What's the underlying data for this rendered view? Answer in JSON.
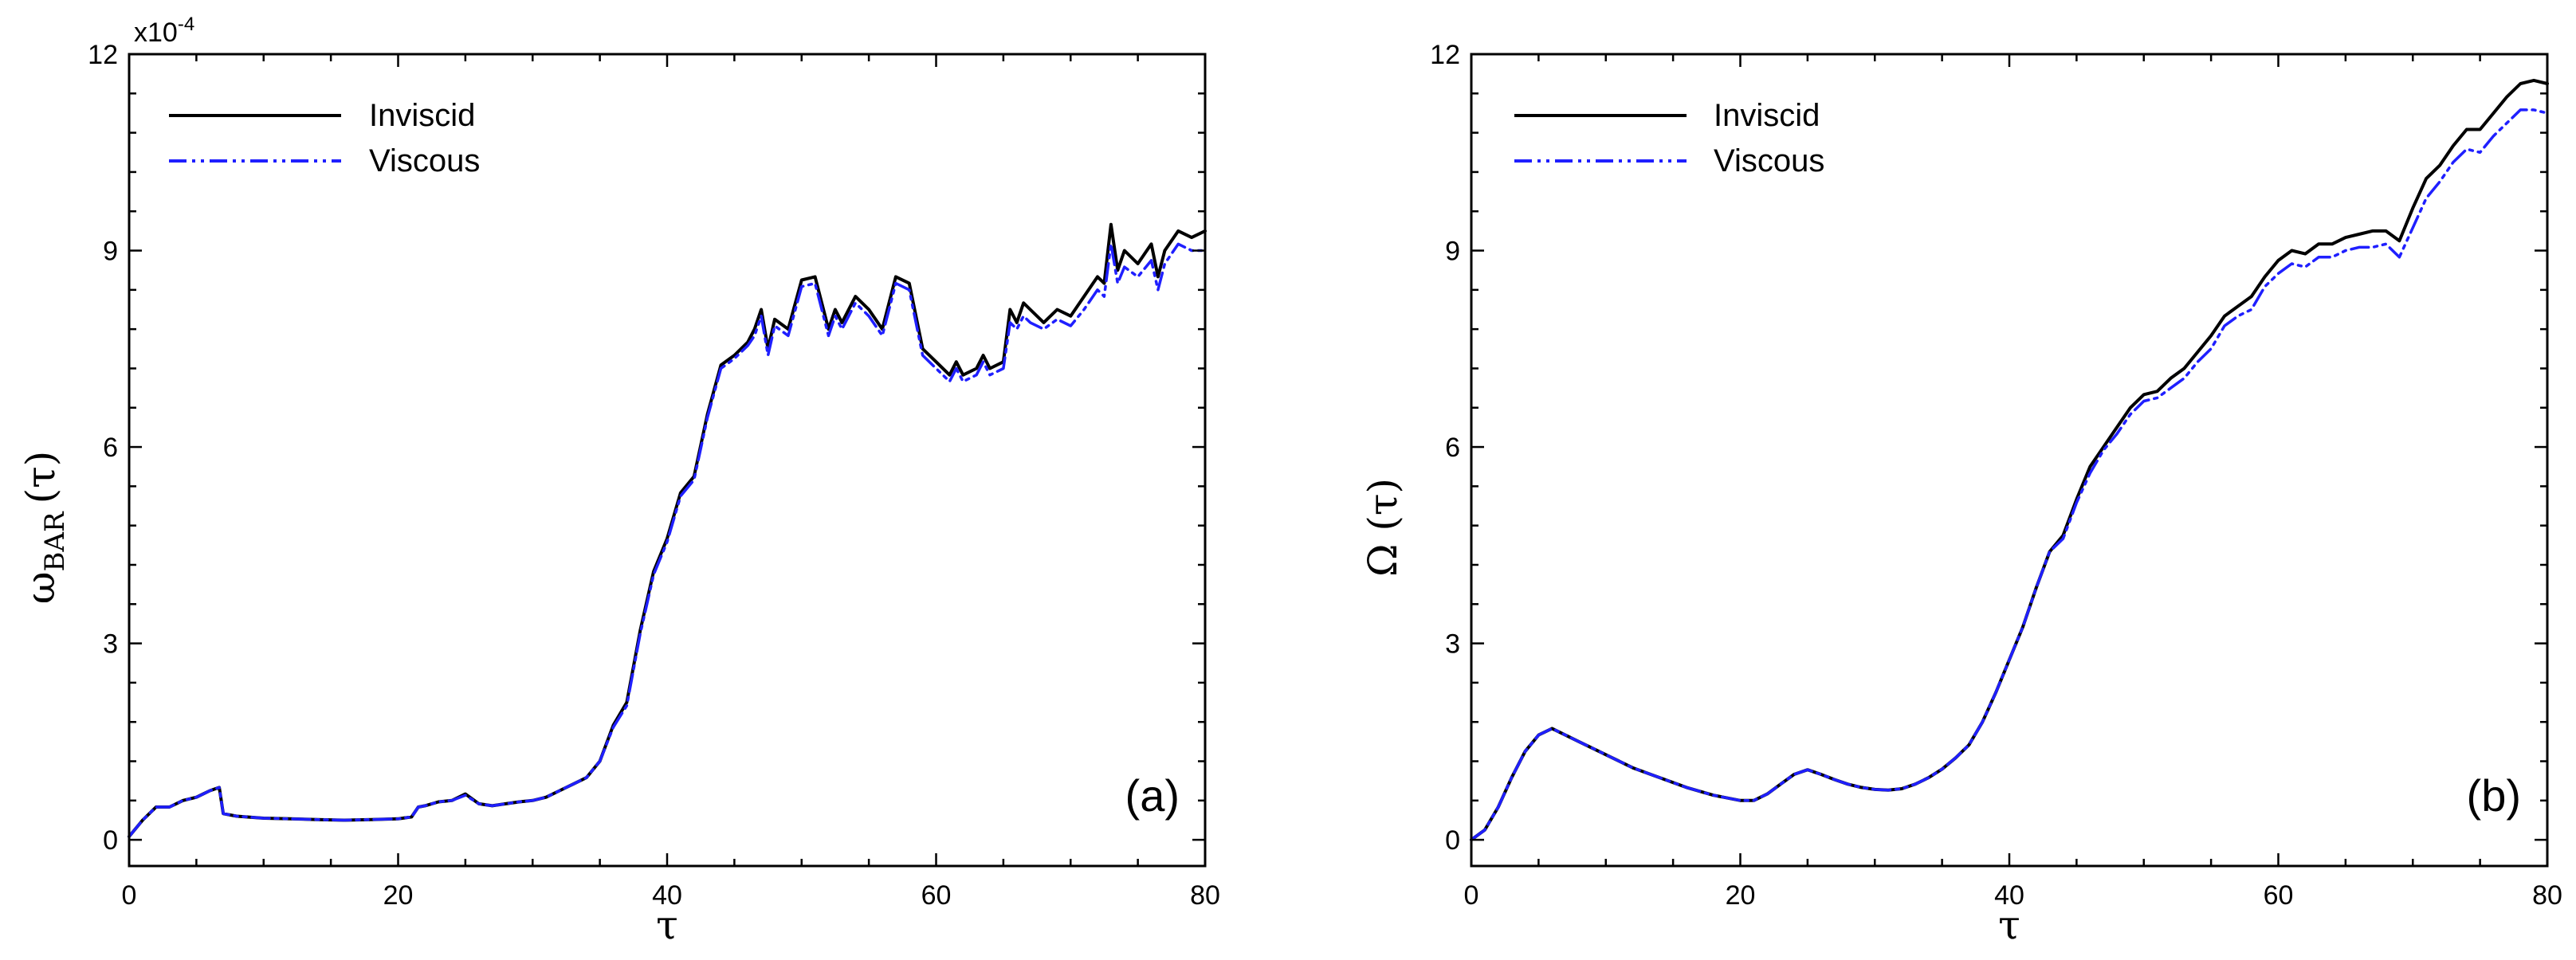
{
  "chart_data": [
    {
      "type": "line",
      "panel_label": "(a)",
      "xlabel": "τ",
      "ylabel_main": "ω",
      "ylabel_sub": "BAR",
      "ylabel_arg": "(τ)",
      "multiplier_base": "x10",
      "multiplier_exp": "-4",
      "xlim": [
        0,
        80
      ],
      "ylim": [
        -0.4,
        12
      ],
      "x_ticks": [
        0,
        20,
        40,
        60,
        80
      ],
      "y_ticks": [
        0,
        3,
        6,
        9,
        12
      ],
      "x_tick_labels": [
        "0",
        "20",
        "40",
        "60",
        "80"
      ],
      "y_tick_labels": [
        "0",
        "3",
        "6",
        "9",
        "12"
      ],
      "grid": false,
      "legend_position": "top-left",
      "series": [
        {
          "name": "Inviscid",
          "color": "#000000",
          "style": "solid",
          "x": [
            0,
            1,
            2,
            3,
            4,
            5,
            6,
            6.7,
            7,
            8,
            10,
            12,
            14,
            16,
            18,
            20,
            21,
            21.5,
            22,
            23,
            24,
            25,
            26,
            27,
            28,
            29,
            30,
            31,
            32,
            33,
            34,
            35,
            36,
            37,
            38,
            39,
            40,
            41,
            42,
            43,
            44,
            45,
            46,
            46.5,
            47,
            47.5,
            48,
            49,
            50,
            51,
            52,
            52.5,
            53,
            54,
            55,
            56,
            57,
            58,
            59,
            60,
            61,
            61.5,
            62,
            63,
            63.5,
            64,
            65,
            65.5,
            66,
            66.5,
            67,
            68,
            69,
            70,
            71,
            72,
            72.5,
            73,
            73.5,
            74,
            75,
            76,
            76.5,
            77,
            78,
            79,
            80
          ],
          "y": [
            0.05,
            0.3,
            0.5,
            0.5,
            0.6,
            0.65,
            0.75,
            0.8,
            0.4,
            0.36,
            0.33,
            0.32,
            0.31,
            0.3,
            0.31,
            0.32,
            0.35,
            0.5,
            0.52,
            0.58,
            0.6,
            0.7,
            0.55,
            0.52,
            0.55,
            0.58,
            0.6,
            0.65,
            0.75,
            0.85,
            0.95,
            1.2,
            1.75,
            2.1,
            3.2,
            4.1,
            4.6,
            5.3,
            5.55,
            6.5,
            7.25,
            7.4,
            7.6,
            7.8,
            8.1,
            7.5,
            7.95,
            7.8,
            8.55,
            8.6,
            7.8,
            8.1,
            7.9,
            8.3,
            8.1,
            7.8,
            8.6,
            8.5,
            7.5,
            7.3,
            7.1,
            7.3,
            7.1,
            7.2,
            7.4,
            7.2,
            7.3,
            8.1,
            7.9,
            8.2,
            8.1,
            7.9,
            8.1,
            8.0,
            8.3,
            8.6,
            8.5,
            9.4,
            8.7,
            9.0,
            8.8,
            9.1,
            8.6,
            9.0,
            9.3,
            9.2,
            9.3
          ]
        },
        {
          "name": "Viscous",
          "color": "#1f1fff",
          "style": "dashdot",
          "x": [
            0,
            1,
            2,
            3,
            4,
            5,
            6,
            6.7,
            7,
            8,
            10,
            12,
            14,
            16,
            18,
            20,
            21,
            21.5,
            22,
            23,
            24,
            25,
            26,
            27,
            28,
            29,
            30,
            31,
            32,
            33,
            34,
            35,
            36,
            37,
            38,
            39,
            40,
            41,
            42,
            43,
            44,
            45,
            46,
            46.5,
            47,
            47.5,
            48,
            49,
            50,
            51,
            52,
            52.5,
            53,
            54,
            55,
            56,
            57,
            58,
            59,
            60,
            61,
            61.5,
            62,
            63,
            63.5,
            64,
            65,
            65.5,
            66,
            66.5,
            67,
            68,
            69,
            70,
            71,
            72,
            72.5,
            73,
            73.5,
            74,
            75,
            76,
            76.5,
            77,
            78,
            79,
            80
          ],
          "y": [
            0.05,
            0.3,
            0.5,
            0.5,
            0.6,
            0.65,
            0.75,
            0.8,
            0.4,
            0.36,
            0.33,
            0.32,
            0.31,
            0.3,
            0.31,
            0.32,
            0.35,
            0.5,
            0.52,
            0.58,
            0.6,
            0.68,
            0.55,
            0.52,
            0.55,
            0.58,
            0.6,
            0.65,
            0.75,
            0.85,
            0.95,
            1.2,
            1.72,
            2.05,
            3.15,
            4.05,
            4.55,
            5.25,
            5.5,
            6.45,
            7.2,
            7.35,
            7.55,
            7.7,
            8.0,
            7.4,
            7.85,
            7.7,
            8.45,
            8.5,
            7.7,
            8.0,
            7.8,
            8.2,
            8.0,
            7.7,
            8.5,
            8.4,
            7.4,
            7.2,
            7.0,
            7.2,
            7.0,
            7.1,
            7.3,
            7.1,
            7.2,
            7.9,
            7.8,
            8.0,
            7.9,
            7.8,
            7.95,
            7.85,
            8.1,
            8.4,
            8.3,
            9.1,
            8.5,
            8.75,
            8.6,
            8.85,
            8.4,
            8.8,
            9.1,
            9.0,
            9.0
          ]
        }
      ]
    },
    {
      "type": "line",
      "panel_label": "(b)",
      "xlabel": "τ",
      "ylabel_main": "Ω (τ)",
      "ylabel_sub": "",
      "ylabel_arg": "",
      "multiplier_base": "",
      "multiplier_exp": "",
      "xlim": [
        0,
        80
      ],
      "ylim": [
        -0.4,
        12
      ],
      "x_ticks": [
        0,
        20,
        40,
        60,
        80
      ],
      "y_ticks": [
        0,
        3,
        6,
        9,
        12
      ],
      "x_tick_labels": [
        "0",
        "20",
        "40",
        "60",
        "80"
      ],
      "y_tick_labels": [
        "0",
        "3",
        "6",
        "9",
        "12"
      ],
      "grid": false,
      "legend_position": "top-left",
      "series": [
        {
          "name": "Inviscid",
          "color": "#000000",
          "style": "solid",
          "x": [
            0,
            1,
            2,
            3,
            4,
            5,
            6,
            8,
            10,
            12,
            14,
            16,
            18,
            20,
            21,
            22,
            23,
            24,
            25,
            26,
            27,
            28,
            29,
            30,
            31,
            32,
            33,
            34,
            35,
            36,
            37,
            38,
            39,
            40,
            41,
            42,
            43,
            44,
            45,
            46,
            47,
            48,
            49,
            50,
            51,
            52,
            53,
            54,
            55,
            56,
            57,
            58,
            59,
            60,
            61,
            62,
            63,
            64,
            65,
            66,
            67,
            68,
            69,
            70,
            71,
            72,
            73,
            74,
            75,
            76,
            77,
            78,
            79,
            80
          ],
          "y": [
            0.0,
            0.15,
            0.5,
            0.95,
            1.35,
            1.6,
            1.7,
            1.5,
            1.3,
            1.1,
            0.95,
            0.8,
            0.68,
            0.6,
            0.6,
            0.7,
            0.85,
            1.0,
            1.07,
            1.0,
            0.92,
            0.85,
            0.8,
            0.77,
            0.76,
            0.78,
            0.85,
            0.95,
            1.08,
            1.25,
            1.45,
            1.8,
            2.25,
            2.75,
            3.25,
            3.85,
            4.4,
            4.65,
            5.2,
            5.7,
            6.0,
            6.3,
            6.6,
            6.8,
            6.85,
            7.05,
            7.2,
            7.45,
            7.7,
            8.0,
            8.15,
            8.3,
            8.6,
            8.85,
            9.0,
            8.95,
            9.1,
            9.1,
            9.2,
            9.25,
            9.3,
            9.3,
            9.15,
            9.65,
            10.1,
            10.3,
            10.6,
            10.85,
            10.85,
            11.1,
            11.35,
            11.55,
            11.6,
            11.55
          ]
        },
        {
          "name": "Viscous",
          "color": "#1f1fff",
          "style": "dashdot",
          "x": [
            0,
            1,
            2,
            3,
            4,
            5,
            6,
            8,
            10,
            12,
            14,
            16,
            18,
            20,
            21,
            22,
            23,
            24,
            25,
            26,
            27,
            28,
            29,
            30,
            31,
            32,
            33,
            34,
            35,
            36,
            37,
            38,
            39,
            40,
            41,
            42,
            43,
            44,
            45,
            46,
            47,
            48,
            49,
            50,
            51,
            52,
            53,
            54,
            55,
            56,
            57,
            58,
            59,
            60,
            61,
            62,
            63,
            64,
            65,
            66,
            67,
            68,
            69,
            70,
            71,
            72,
            73,
            74,
            75,
            76,
            77,
            78,
            79,
            80
          ],
          "y": [
            0.0,
            0.15,
            0.5,
            0.95,
            1.35,
            1.6,
            1.7,
            1.5,
            1.3,
            1.1,
            0.95,
            0.8,
            0.68,
            0.6,
            0.6,
            0.7,
            0.85,
            1.0,
            1.07,
            1.0,
            0.92,
            0.85,
            0.8,
            0.77,
            0.76,
            0.78,
            0.85,
            0.95,
            1.08,
            1.25,
            1.45,
            1.8,
            2.25,
            2.75,
            3.25,
            3.85,
            4.4,
            4.6,
            5.15,
            5.6,
            5.95,
            6.2,
            6.5,
            6.7,
            6.75,
            6.9,
            7.05,
            7.3,
            7.5,
            7.85,
            8.0,
            8.1,
            8.45,
            8.65,
            8.8,
            8.75,
            8.9,
            8.9,
            9.0,
            9.05,
            9.05,
            9.1,
            8.9,
            9.35,
            9.8,
            10.05,
            10.35,
            10.55,
            10.5,
            10.75,
            10.95,
            11.15,
            11.15,
            11.1
          ]
        }
      ]
    }
  ]
}
